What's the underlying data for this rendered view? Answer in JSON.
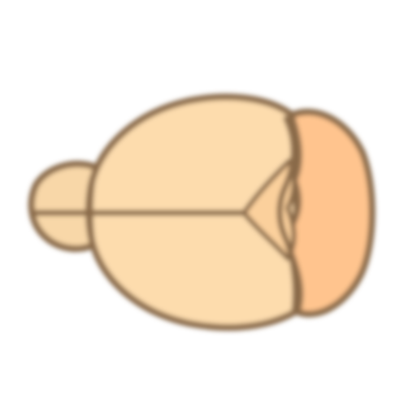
{
  "diagram": {
    "colors": {
      "background": "#ffffff",
      "outline": "#8a6a4a",
      "olfactory_bulb": "#f8d7a8",
      "cerebrum": "#fddcad",
      "cerebellum": "#ffc48e",
      "midbrain": "#fbd09c"
    }
  }
}
